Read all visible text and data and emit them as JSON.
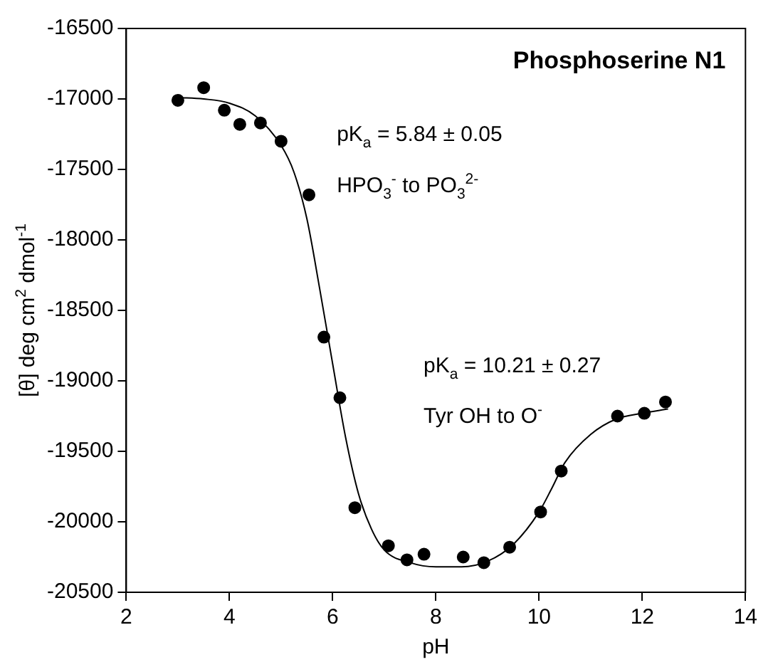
{
  "chart_data": {
    "type": "scatter",
    "title": "Phosphoserine N1",
    "xlabel": "pH",
    "ylabel": "[θ] deg cm$^{2}$ dmol$^{-1}$",
    "xlim": [
      2,
      14
    ],
    "xticks": [
      2,
      4,
      6,
      8,
      10,
      12,
      14
    ],
    "ylim": [
      -20500,
      -16500
    ],
    "yticks": [
      -20500,
      -20000,
      -19500,
      -19000,
      -18500,
      -18000,
      -17500,
      -17000,
      -16500
    ],
    "grid": false,
    "legend": false,
    "annotations": [
      "pK$_{a}$ = 5.84 ± 0.05",
      "HPO$_{3}$$^{-}$ to PO$_{3}$$^{2-}$",
      "pK$_{a}$ = 10.21 ± 0.27",
      "Tyr OH to O$^{-}$"
    ],
    "series": [
      {
        "type": "scatter",
        "color": "#000000",
        "marker": "circle",
        "x": [
          3.0,
          3.5,
          3.9,
          4.2,
          4.6,
          5.0,
          5.54,
          5.83,
          6.14,
          6.43,
          7.08,
          7.44,
          7.77,
          8.53,
          8.93,
          9.43,
          10.03,
          10.43,
          11.52,
          12.04,
          12.45
        ],
        "values": [
          -17010,
          -16920,
          -17080,
          -17180,
          -17170,
          -17300,
          -17680,
          -18690,
          -19120,
          -19900,
          -20170,
          -20270,
          -20230,
          -20250,
          -20290,
          -20180,
          -19930,
          -19640,
          -19250,
          -19230,
          -19150
        ]
      },
      {
        "type": "line",
        "color": "#000000",
        "marker": "none",
        "x": [
          3,
          3.5,
          4,
          4.5,
          5,
          5.25,
          5.5,
          5.75,
          6,
          6.25,
          6.5,
          6.75,
          7,
          7.5,
          8,
          8.5,
          9,
          9.5,
          10,
          10.25,
          10.5,
          11,
          11.5,
          12,
          12.5
        ],
        "values": [
          -16990,
          -17000,
          -17030,
          -17120,
          -17330,
          -17520,
          -17850,
          -18350,
          -18880,
          -19400,
          -19800,
          -20050,
          -20200,
          -20290,
          -20320,
          -20320,
          -20280,
          -20160,
          -19930,
          -19760,
          -19580,
          -19380,
          -19270,
          -19230,
          -19200
        ]
      }
    ]
  }
}
